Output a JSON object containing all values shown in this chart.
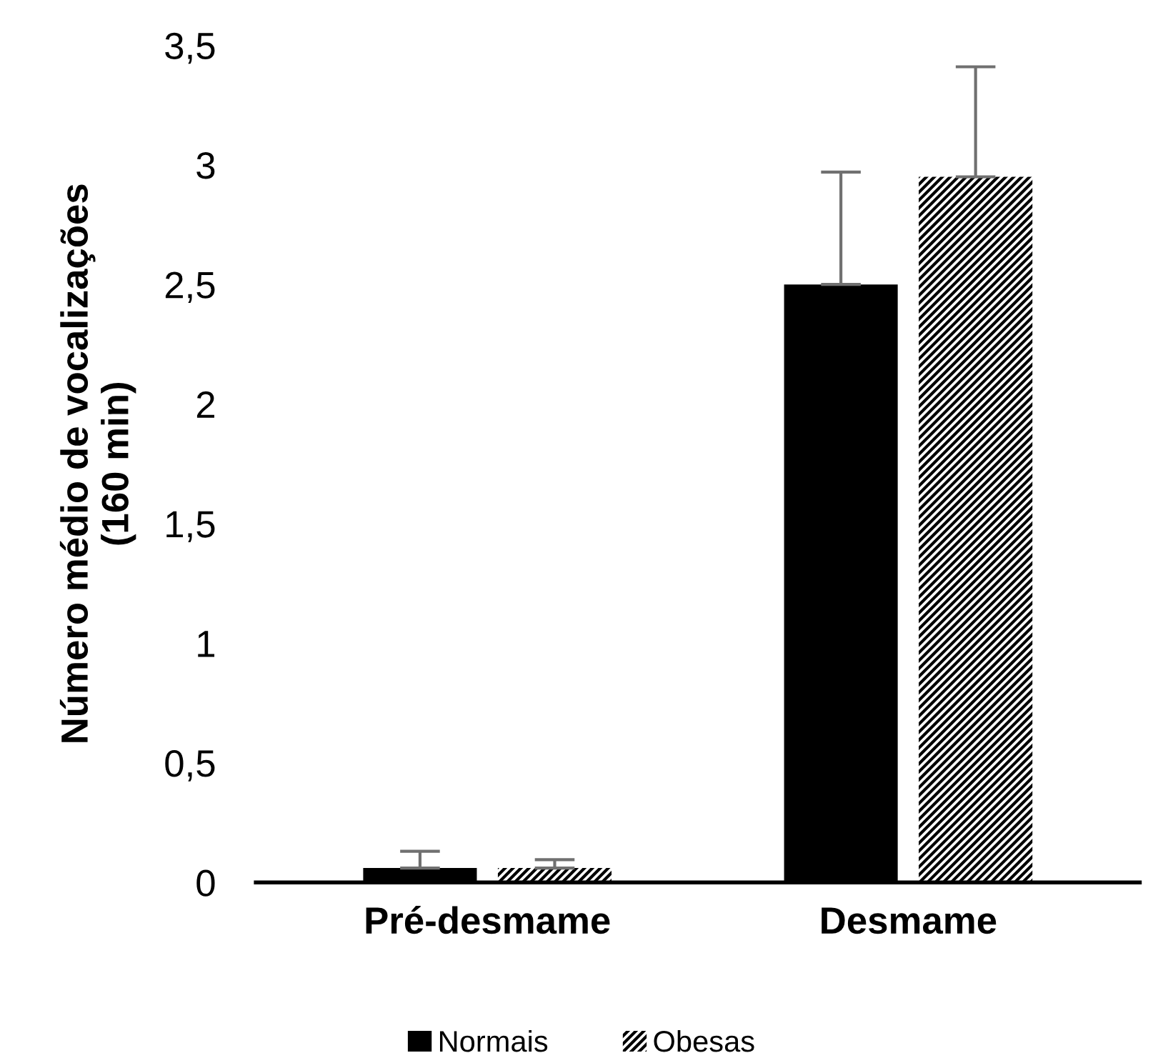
{
  "chart_data": {
    "type": "bar",
    "ylabel": "Número médio de vocalizações\n(160 min)",
    "categories": [
      "Pré-desmame",
      "Desmame"
    ],
    "series": [
      {
        "name": "Normais",
        "color": "#000000",
        "values": [
          0.06,
          2.5
        ],
        "errors": [
          [
            0.06,
            0.13
          ],
          [
            2.5,
            2.97
          ]
        ]
      },
      {
        "name": "Obesas",
        "color": "#ffffff",
        "values": [
          0.06,
          2.95
        ],
        "errors": [
          [
            0.06,
            0.095
          ],
          [
            2.95,
            3.41
          ]
        ]
      }
    ],
    "ylim": [
      0,
      3.5
    ],
    "yticks": [
      {
        "value": 0,
        "label": "0"
      },
      {
        "value": 0.5,
        "label": "0,5"
      },
      {
        "value": 1,
        "label": "1"
      },
      {
        "value": 1.5,
        "label": "1,5"
      },
      {
        "value": 2,
        "label": "2"
      },
      {
        "value": 2.5,
        "label": "2,5"
      },
      {
        "value": 3,
        "label": "3"
      },
      {
        "value": 3.5,
        "label": "3,5"
      }
    ],
    "grid": false,
    "legend": "bottom"
  }
}
